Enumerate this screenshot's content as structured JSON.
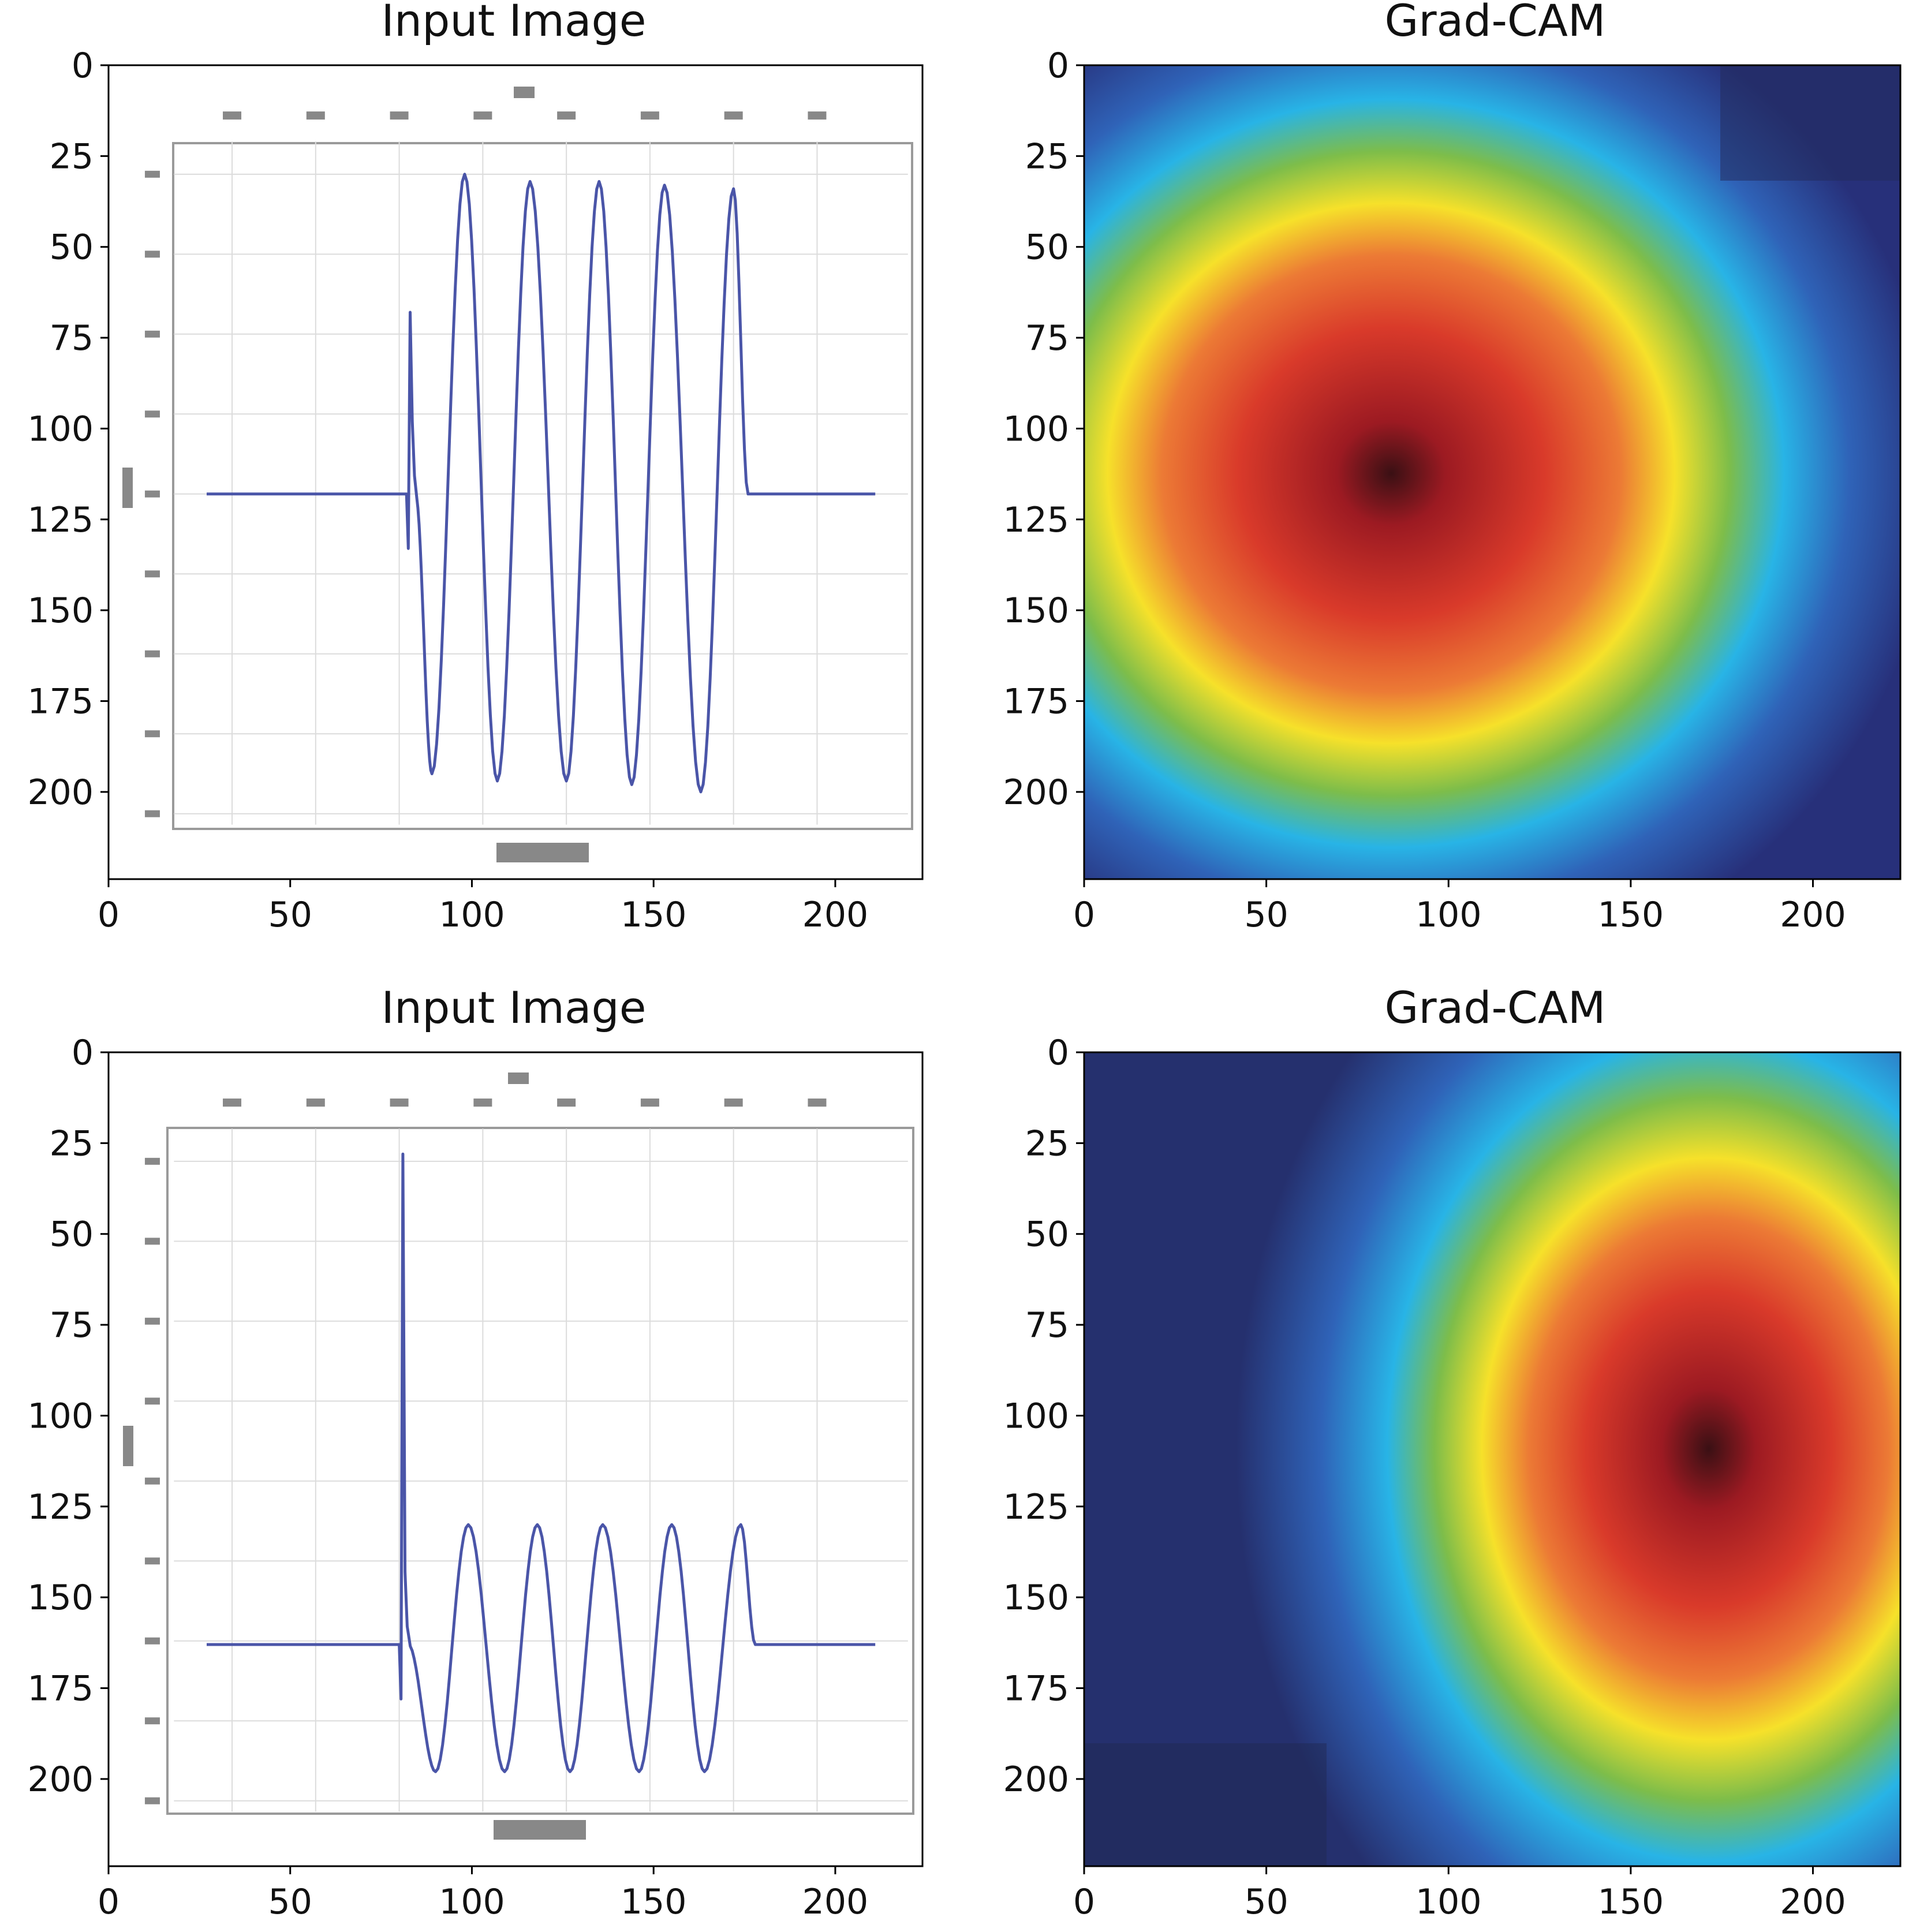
{
  "chart_data": [
    {
      "type": "image",
      "title": "Input Image",
      "image_content": "waveform",
      "baseline_y": 118,
      "xlim": [
        0,
        224
      ],
      "ylim": [
        224,
        0
      ],
      "xticks": [
        0,
        50,
        100,
        150,
        200
      ],
      "yticks": [
        0,
        25,
        50,
        75,
        100,
        125,
        150,
        175,
        200
      ],
      "spike": {
        "x": 83,
        "top_y": 68
      },
      "peaks": [
        {
          "x": 98,
          "y": 30
        },
        {
          "x": 116,
          "y": 32
        },
        {
          "x": 135,
          "y": 32
        },
        {
          "x": 153,
          "y": 33
        },
        {
          "x": 172,
          "y": 34
        }
      ],
      "troughs": [
        {
          "x": 89,
          "y": 195
        },
        {
          "x": 107,
          "y": 197
        },
        {
          "x": 126,
          "y": 197
        },
        {
          "x": 144,
          "y": 198
        },
        {
          "x": 163,
          "y": 200
        }
      ]
    },
    {
      "type": "heatmap",
      "title": "Grad-CAM",
      "colormap": "jet",
      "xlim": [
        0,
        224
      ],
      "ylim": [
        224,
        0
      ],
      "xticks": [
        0,
        50,
        100,
        150,
        200
      ],
      "yticks": [
        0,
        25,
        50,
        75,
        100,
        125,
        150,
        175,
        200
      ],
      "hotspot": {
        "x": 90,
        "y": 112
      }
    },
    {
      "type": "image",
      "title": "Input Image",
      "image_content": "waveform",
      "baseline_y": 163,
      "xlim": [
        0,
        224
      ],
      "ylim": [
        224,
        0
      ],
      "xticks": [
        0,
        50,
        100,
        150,
        200
      ],
      "yticks": [
        0,
        25,
        50,
        75,
        100,
        125,
        150,
        175,
        200
      ],
      "spike": {
        "x": 81,
        "top_y": 28
      },
      "peaks": [
        {
          "x": 99,
          "y": 130
        },
        {
          "x": 118,
          "y": 130
        },
        {
          "x": 136,
          "y": 130
        },
        {
          "x": 155,
          "y": 130
        },
        {
          "x": 174,
          "y": 130
        }
      ],
      "troughs": [
        {
          "x": 90,
          "y": 198
        },
        {
          "x": 109,
          "y": 198
        },
        {
          "x": 127,
          "y": 198
        },
        {
          "x": 146,
          "y": 198
        },
        {
          "x": 164,
          "y": 198
        }
      ]
    },
    {
      "type": "heatmap",
      "title": "Grad-CAM",
      "colormap": "jet",
      "xlim": [
        0,
        224
      ],
      "ylim": [
        224,
        0
      ],
      "xticks": [
        0,
        50,
        100,
        150,
        200
      ],
      "yticks": [
        0,
        25,
        50,
        75,
        100,
        125,
        150,
        175,
        200
      ],
      "hotspot": {
        "x": 165,
        "y": 110
      }
    }
  ]
}
